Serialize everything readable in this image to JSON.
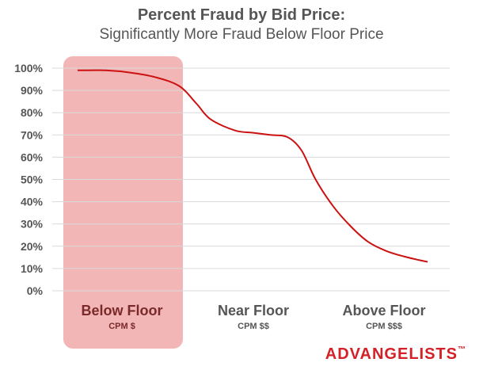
{
  "chart_data": {
    "type": "line",
    "title": "Percent Fraud by Bid Price:",
    "subtitle": "Significantly More Fraud Below Floor Price",
    "ylim": [
      0,
      100
    ],
    "yticks": [
      "100%",
      "90%",
      "80%",
      "70%",
      "60%",
      "50%",
      "40%",
      "30%",
      "20%",
      "10%",
      "0%"
    ],
    "xlim": [
      0,
      1
    ],
    "categories": [
      {
        "label": "Below Floor",
        "sublabel": "CPM $",
        "highlighted": true
      },
      {
        "label": "Near Floor",
        "sublabel": "CPM $$",
        "highlighted": false
      },
      {
        "label": "Above Floor",
        "sublabel": "CPM $$$",
        "highlighted": false
      }
    ],
    "series": [
      {
        "color": "#cc1111",
        "x": [
          0.0,
          0.08,
          0.15,
          0.22,
          0.29,
          0.34,
          0.38,
          0.45,
          0.5,
          0.55,
          0.6,
          0.64,
          0.68,
          0.73,
          0.78,
          0.83,
          0.88,
          0.93,
          0.97,
          1.0
        ],
        "values": [
          99,
          99,
          98,
          96,
          92,
          84,
          77,
          72,
          71,
          70,
          69,
          63,
          50,
          38,
          29,
          22,
          18,
          15.5,
          14,
          13
        ]
      }
    ],
    "colors": {
      "highlight": "#f2b6b6",
      "highlight_text": "#7a2a2a",
      "grid": "#d9d9d9",
      "text": "#555555"
    },
    "grid": true
  },
  "brand": {
    "name": "ADVANGELISTS",
    "mark": "™"
  }
}
